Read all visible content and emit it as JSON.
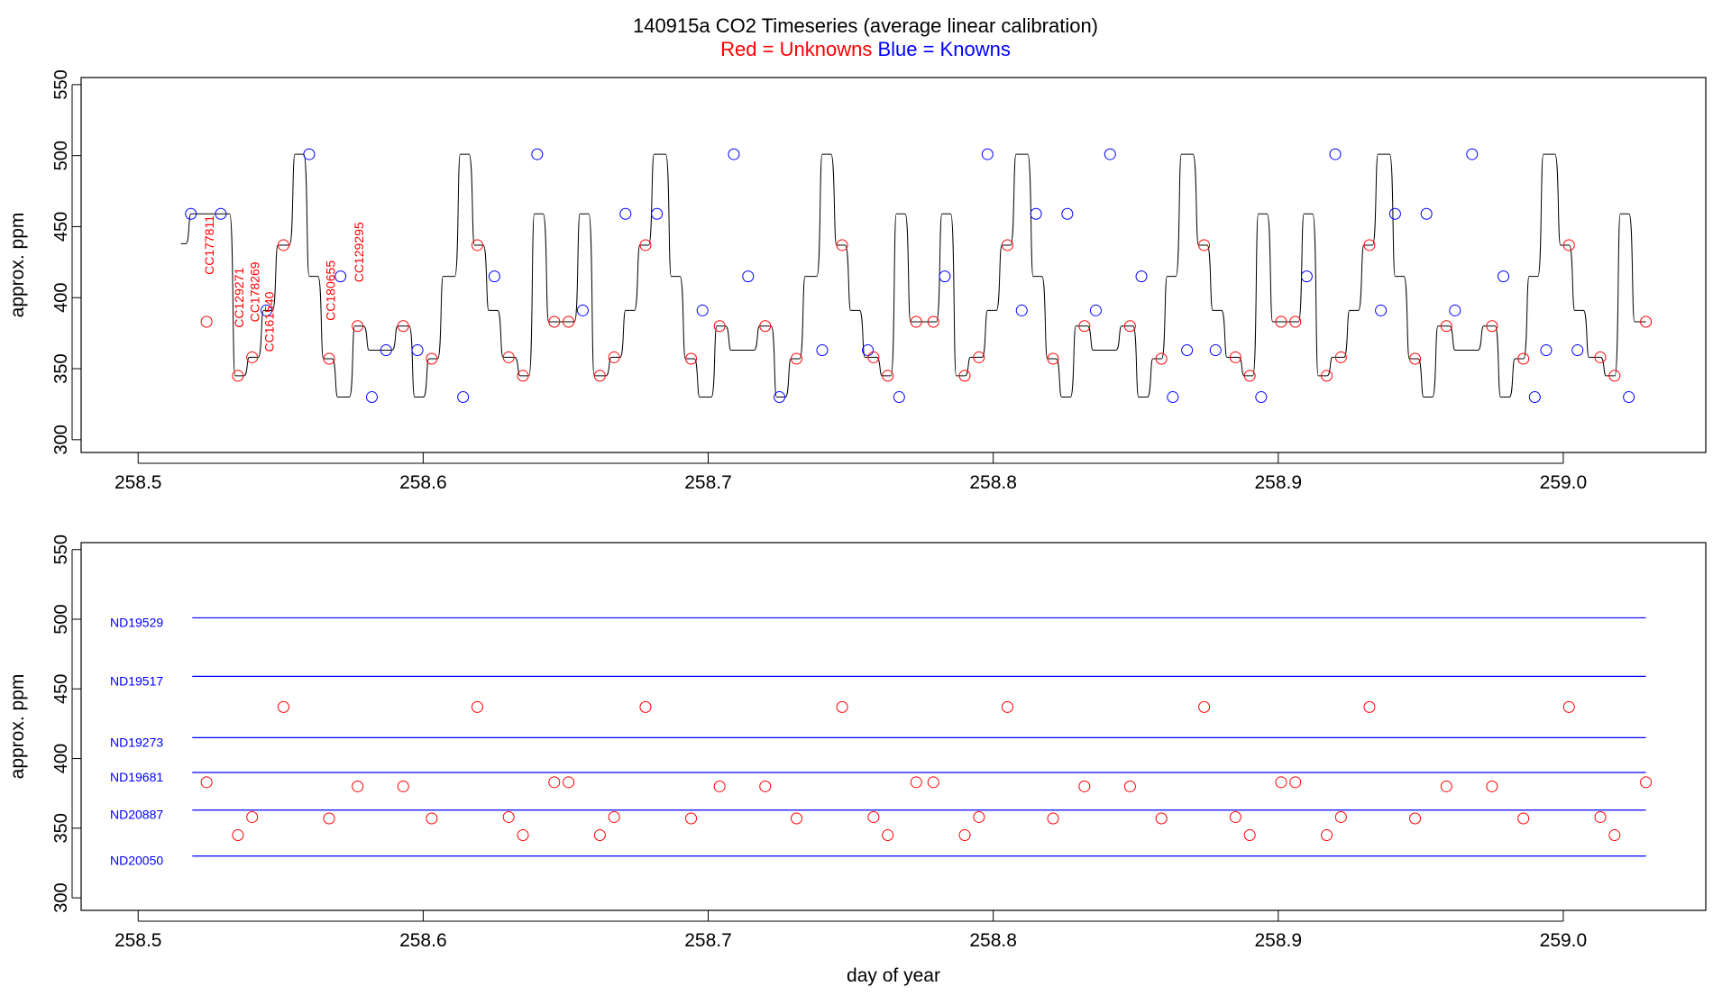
{
  "title": "140915a   CO2 Timeseries (average linear calibration)",
  "subtitle": {
    "red": "Red = Unknowns",
    "blue": "Blue = Knowns"
  },
  "colors": {
    "unknown": "#ff0000",
    "known": "#0000ff",
    "line": "#000000",
    "axis": "#000000"
  },
  "chart_data": [
    {
      "type": "line",
      "panel": "top",
      "ylabel": "approx. ppm",
      "xlabel": "",
      "xlim": [
        258.48,
        259.05
      ],
      "ylim": [
        291,
        555
      ],
      "x_ticks": [
        258.5,
        258.6,
        258.7,
        258.8,
        258.9,
        259.0
      ],
      "x_tick_labels": [
        "258.5",
        "258.6",
        "258.7",
        "258.8",
        "258.9",
        "259.0"
      ],
      "y_ticks": [
        300,
        350,
        400,
        450,
        500,
        550
      ],
      "y_tick_labels": [
        "300",
        "350",
        "400",
        "450",
        "500",
        "550"
      ],
      "series": [
        {
          "kind": "stepped",
          "x": [
            258.515,
            258.5185,
            258.529,
            258.534,
            258.539,
            258.544,
            258.549,
            258.555,
            258.56,
            258.565,
            258.57,
            258.576,
            258.581,
            258.586,
            258.591,
            258.597,
            258.602,
            258.607,
            258.613,
            258.618,
            258.623,
            258.628,
            258.634,
            258.639,
            258.644,
            258.65,
            258.655,
            258.66,
            258.666,
            258.671,
            258.676,
            258.681,
            258.687,
            258.692,
            258.697,
            258.703,
            258.708,
            258.713,
            258.718,
            258.724,
            258.729,
            258.734,
            258.74,
            258.745,
            258.75,
            258.755,
            258.761,
            258.766,
            258.771,
            258.777,
            258.782,
            258.787,
            258.792,
            258.798,
            258.803,
            258.808,
            258.814,
            258.819,
            258.824,
            258.829,
            258.835,
            258.84,
            258.845,
            258.851,
            258.856,
            258.861,
            258.866,
            258.872,
            258.877,
            258.882,
            258.888,
            258.893,
            258.898,
            258.903,
            258.909,
            258.914,
            258.919,
            258.925,
            258.93,
            258.935,
            258.941,
            258.946,
            258.951,
            258.956,
            258.962,
            258.967,
            258.972,
            258.978,
            258.983,
            258.988,
            258.993,
            258.999,
            259.004,
            259.009,
            259.015,
            259.02,
            259.025,
            259.029
          ],
          "y": [
            438,
            459,
            459,
            345,
            358,
            391,
            437,
            501,
            415,
            357,
            330,
            380,
            363,
            363,
            380,
            330,
            357,
            415,
            501,
            437,
            391,
            358,
            345,
            459,
            383,
            383,
            459,
            345,
            358,
            391,
            437,
            501,
            415,
            357,
            330,
            380,
            363,
            363,
            380,
            330,
            357,
            415,
            501,
            437,
            391,
            358,
            345,
            459,
            383,
            383,
            459,
            345,
            358,
            391,
            437,
            501,
            415,
            357,
            330,
            380,
            363,
            363,
            380,
            330,
            357,
            415,
            501,
            437,
            391,
            358,
            345,
            459,
            383,
            383,
            459,
            345,
            358,
            391,
            437,
            501,
            415,
            357,
            330,
            380,
            363,
            363,
            380,
            330,
            357,
            415,
            501,
            437,
            391,
            358,
            345,
            459,
            383,
            383
          ]
        }
      ],
      "known_points": {
        "x": [
          258.5185,
          258.529,
          258.545,
          258.56,
          258.571,
          258.582,
          258.587,
          258.598,
          258.614,
          258.625,
          258.64,
          258.656,
          258.671,
          258.682,
          258.698,
          258.709,
          258.714,
          258.725,
          258.74,
          258.756,
          258.767,
          258.783,
          258.798,
          258.81,
          258.815,
          258.826,
          258.836,
          258.841,
          258.852,
          258.863,
          258.868,
          258.878,
          258.894,
          258.91,
          258.92,
          258.936,
          258.941,
          258.952,
          258.962,
          258.968,
          258.979,
          258.99,
          258.994,
          259.005,
          259.023
        ],
        "y": [
          459,
          459,
          391,
          501,
          415,
          330,
          363,
          363,
          330,
          415,
          501,
          391,
          459,
          459,
          391,
          501,
          415,
          330,
          363,
          363,
          330,
          415,
          501,
          391,
          459,
          459,
          391,
          501,
          415,
          330,
          363,
          363,
          330,
          415,
          501,
          391,
          459,
          459,
          391,
          501,
          415,
          330,
          363,
          363,
          330
        ]
      },
      "unknown_points": {
        "x": [
          258.524,
          258.535,
          258.54,
          258.551,
          258.567,
          258.577,
          258.593,
          258.603,
          258.619,
          258.63,
          258.635,
          258.646,
          258.651,
          258.662,
          258.667,
          258.678,
          258.694,
          258.704,
          258.72,
          258.731,
          258.747,
          258.758,
          258.763,
          258.773,
          258.779,
          258.79,
          258.795,
          258.805,
          258.821,
          258.832,
          258.848,
          258.859,
          258.874,
          258.885,
          258.89,
          258.901,
          258.906,
          258.917,
          258.922,
          258.932,
          258.948,
          258.959,
          258.975,
          258.986,
          259.002,
          259.013,
          259.018,
          259.029
        ],
        "y": [
          383,
          345,
          358,
          437,
          357,
          380,
          380,
          357,
          437,
          358,
          345,
          383,
          383,
          345,
          358,
          437,
          357,
          380,
          380,
          357,
          437,
          358,
          345,
          383,
          383,
          345,
          358,
          437,
          357,
          380,
          380,
          357,
          437,
          358,
          345,
          383,
          383,
          345,
          358,
          437,
          357,
          380,
          380,
          357,
          437,
          358,
          345,
          383
        ]
      },
      "annotations": [
        {
          "text": "CC177811",
          "x": 258.5265,
          "y": 437
        },
        {
          "text": "CC129271",
          "x": 258.537,
          "y": 400
        },
        {
          "text": "CC178269",
          "x": 258.5425,
          "y": 404
        },
        {
          "text": "CC161540",
          "x": 258.5475,
          "y": 383
        },
        {
          "text": "CC180655",
          "x": 258.569,
          "y": 405
        },
        {
          "text": "CC129295",
          "x": 258.579,
          "y": 432
        }
      ]
    },
    {
      "type": "scatter",
      "panel": "bottom",
      "ylabel": "approx. ppm",
      "xlabel": "day of year",
      "xlim": [
        258.48,
        259.05
      ],
      "ylim": [
        291,
        555
      ],
      "x_ticks": [
        258.5,
        258.6,
        258.7,
        258.8,
        258.9,
        259.0
      ],
      "x_tick_labels": [
        "258.5",
        "258.6",
        "258.7",
        "258.8",
        "258.9",
        "259.0"
      ],
      "y_ticks": [
        300,
        350,
        400,
        450,
        500,
        550
      ],
      "y_tick_labels": [
        "300",
        "350",
        "400",
        "450",
        "500",
        "550"
      ],
      "reference_lines": [
        {
          "name": "ND19529",
          "value": 501
        },
        {
          "name": "ND19517",
          "value": 459
        },
        {
          "name": "ND19273",
          "value": 415
        },
        {
          "name": "ND19681",
          "value": 390
        },
        {
          "name": "ND20887",
          "value": 363
        },
        {
          "name": "ND20050",
          "value": 330
        }
      ],
      "reference_x_range": [
        258.519,
        259.029
      ],
      "unknown_points": {
        "x": [
          258.524,
          258.535,
          258.54,
          258.551,
          258.567,
          258.577,
          258.593,
          258.603,
          258.619,
          258.63,
          258.635,
          258.646,
          258.651,
          258.662,
          258.667,
          258.678,
          258.694,
          258.704,
          258.72,
          258.731,
          258.747,
          258.758,
          258.763,
          258.773,
          258.779,
          258.79,
          258.795,
          258.805,
          258.821,
          258.832,
          258.848,
          258.859,
          258.874,
          258.885,
          258.89,
          258.901,
          258.906,
          258.917,
          258.922,
          258.932,
          258.948,
          258.959,
          258.975,
          258.986,
          259.002,
          259.013,
          259.018,
          259.029
        ],
        "y": [
          383,
          345,
          358,
          437,
          357,
          380,
          380,
          357,
          437,
          358,
          345,
          383,
          383,
          345,
          358,
          437,
          357,
          380,
          380,
          357,
          437,
          358,
          345,
          383,
          383,
          345,
          358,
          437,
          357,
          380,
          380,
          357,
          437,
          358,
          345,
          383,
          383,
          345,
          358,
          437,
          357,
          380,
          380,
          357,
          437,
          358,
          345,
          383
        ]
      }
    }
  ]
}
